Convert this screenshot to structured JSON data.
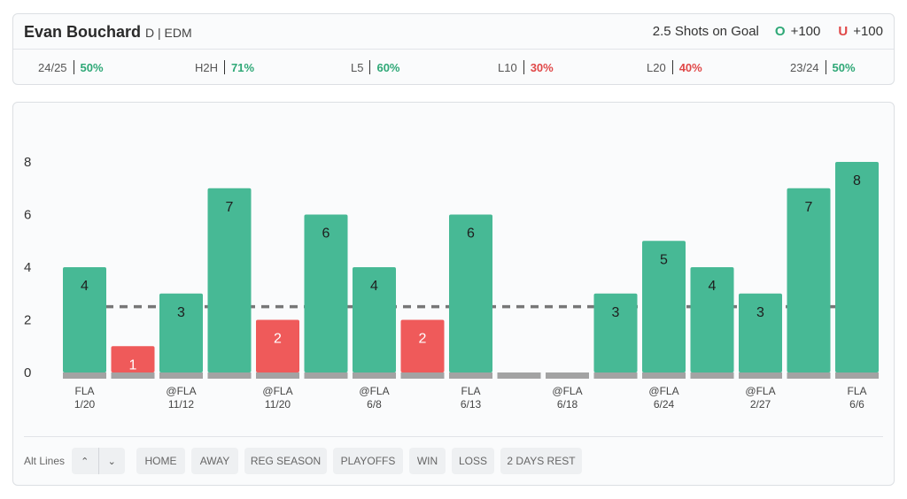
{
  "header": {
    "player_name": "Evan Bouchard",
    "position_team": "D | EDM",
    "prop_label": "2.5 Shots on Goal",
    "over_letter": "O",
    "over_odds": "+100",
    "under_letter": "U",
    "under_odds": "+100"
  },
  "stats": [
    {
      "label": "24/25",
      "value": "50%",
      "status": "green"
    },
    {
      "label": "H2H",
      "value": "71%",
      "status": "green"
    },
    {
      "label": "L5",
      "value": "60%",
      "status": "green"
    },
    {
      "label": "L10",
      "value": "30%",
      "status": "red"
    },
    {
      "label": "L20",
      "value": "40%",
      "status": "red"
    },
    {
      "label": "23/24",
      "value": "50%",
      "status": "green"
    }
  ],
  "colors": {
    "over": "#47b995",
    "under": "#ef5a5a",
    "baseline": "#a3a3a3",
    "line": "#777777"
  },
  "chart_data": {
    "type": "bar",
    "values": [
      4,
      1,
      3,
      7,
      2,
      6,
      4,
      2,
      6,
      0,
      0,
      3,
      5,
      4,
      3,
      7,
      8
    ],
    "x_labels": [
      {
        "index": 0,
        "opponent": "FLA",
        "date": "1/20"
      },
      {
        "index": 2,
        "opponent": "@FLA",
        "date": "11/12"
      },
      {
        "index": 4,
        "opponent": "@FLA",
        "date": "11/20"
      },
      {
        "index": 6,
        "opponent": "@FLA",
        "date": "6/8"
      },
      {
        "index": 8,
        "opponent": "FLA",
        "date": "6/13"
      },
      {
        "index": 10,
        "opponent": "@FLA",
        "date": "6/18"
      },
      {
        "index": 12,
        "opponent": "@FLA",
        "date": "6/24"
      },
      {
        "index": 14,
        "opponent": "@FLA",
        "date": "2/27"
      },
      {
        "index": 16,
        "opponent": "FLA",
        "date": "6/6"
      }
    ],
    "y_ticks": [
      0,
      2,
      4,
      6,
      8
    ],
    "ylim": [
      0,
      8
    ],
    "line_value": 2.5,
    "grid": false
  },
  "filters": {
    "label": "Alt Lines",
    "up_icon": "chevron-up-icon",
    "down_icon": "chevron-down-icon",
    "buttons": [
      "HOME",
      "AWAY",
      "REG SEASON",
      "PLAYOFFS",
      "WIN",
      "LOSS",
      "2 DAYS REST"
    ]
  }
}
